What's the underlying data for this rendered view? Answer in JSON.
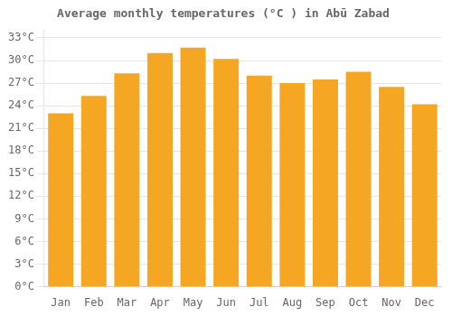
{
  "chart_data": {
    "type": "bar",
    "title": "Average monthly temperatures (°C ) in Abū Zabad",
    "categories": [
      "Jan",
      "Feb",
      "Mar",
      "Apr",
      "May",
      "Jun",
      "Jul",
      "Aug",
      "Sep",
      "Oct",
      "Nov",
      "Dec"
    ],
    "values": [
      23.0,
      25.3,
      28.3,
      31.0,
      31.7,
      30.2,
      28.0,
      27.0,
      27.5,
      28.5,
      26.5,
      24.2
    ],
    "color": "#F5A623",
    "ylim": [
      0,
      34
    ],
    "yticks": [
      {
        "value": 0,
        "label": "0°C"
      },
      {
        "value": 3,
        "label": "3°C"
      },
      {
        "value": 6,
        "label": "6°C"
      },
      {
        "value": 9,
        "label": "9°C"
      },
      {
        "value": 12,
        "label": "12°C"
      },
      {
        "value": 15,
        "label": "15°C"
      },
      {
        "value": 18,
        "label": "18°C"
      },
      {
        "value": 21,
        "label": "21°C"
      },
      {
        "value": 24,
        "label": "24°C"
      },
      {
        "value": 27,
        "label": "27°C"
      },
      {
        "value": 30,
        "label": "30°C"
      },
      {
        "value": 33,
        "label": "33°C"
      }
    ],
    "grid": true
  }
}
